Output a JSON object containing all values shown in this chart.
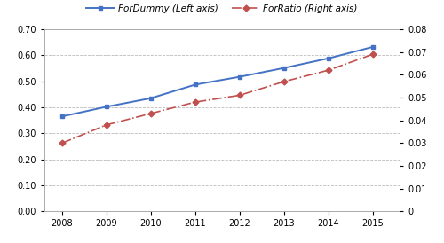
{
  "years": [
    2008,
    2009,
    2010,
    2011,
    2012,
    2013,
    2014,
    2015
  ],
  "for_dummy": [
    0.365,
    0.402,
    0.435,
    0.487,
    0.517,
    0.551,
    0.588,
    0.632
  ],
  "for_ratio": [
    0.03,
    0.038,
    0.043,
    0.048,
    0.051,
    0.057,
    0.062,
    0.069
  ],
  "left_ylim": [
    0.0,
    0.7
  ],
  "right_ylim": [
    0.0,
    0.08
  ],
  "left_ytick_labels": [
    "0.00",
    "0.10",
    "0.20",
    "0.30",
    "0.40",
    "0.50",
    "0.60",
    "0.70"
  ],
  "left_yticks": [
    0.0,
    0.1,
    0.2,
    0.3,
    0.4,
    0.5,
    0.6,
    0.7
  ],
  "right_ytick_labels": [
    "0",
    "0.01",
    "0.02",
    "0.03",
    "0.04",
    "0.05",
    "0.06",
    "0.07",
    "0.08"
  ],
  "right_yticks": [
    0.0,
    0.01,
    0.02,
    0.03,
    0.04,
    0.05,
    0.06,
    0.07,
    0.08
  ],
  "line1_color": "#4472C4",
  "line2_color": "#C0504D",
  "line1_label": "ForDummy (Left axis)",
  "line2_label": "ForRatio (Right axis)",
  "background_color": "#FFFFFF",
  "grid_color": "#AAAAAA",
  "spine_color": "#AAAAAA",
  "figsize": [
    5.0,
    2.74
  ],
  "dpi": 100
}
